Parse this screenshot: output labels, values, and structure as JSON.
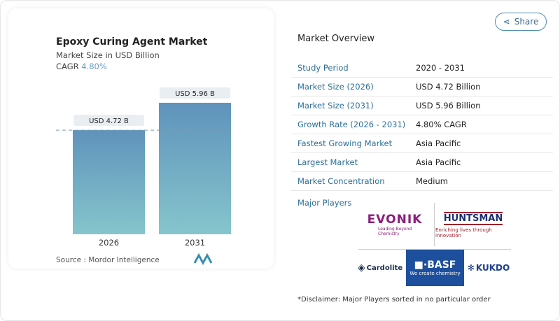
{
  "header": {
    "share_label": "Share",
    "share_icon": "share-icon"
  },
  "chart_data": {
    "type": "bar",
    "title": "Epoxy Curing Agent Market",
    "subtitle": "Market Size in USD Billion",
    "cagr_label": "CAGR",
    "cagr_value": "4.80%",
    "categories": [
      "2026",
      "2031"
    ],
    "values": [
      4.72,
      5.96
    ],
    "data_labels": [
      "USD 4.72 B",
      "USD 5.96 B"
    ],
    "reference_line": 4.72,
    "colors": {
      "top": "#5f93bb",
      "bottom": "#86c5cc"
    }
  },
  "source": "Source :  Mordor Intelligence",
  "overview": {
    "title": "Market Overview",
    "rows": [
      {
        "k": "Study Period",
        "v": "2020 - 2031"
      },
      {
        "k": "Market Size (2026)",
        "v": "USD 4.72 Billion"
      },
      {
        "k": "Market Size (2031)",
        "v": "USD 5.96 Billion"
      },
      {
        "k": "Growth Rate (2026 - 2031)",
        "v": "4.80% CAGR"
      },
      {
        "k": "Fastest Growing Market",
        "v": "Asia Pacific"
      },
      {
        "k": "Largest Market",
        "v": "Asia Pacific"
      },
      {
        "k": "Market Concentration",
        "v": "Medium"
      }
    ],
    "major_players_label": "Major Players",
    "players": [
      "EVONIK",
      "HUNTSMAN",
      "Cardolite",
      "BASF",
      "KUKDO"
    ],
    "player_taglines": {
      "evonik": "Leading Beyond Chemistry",
      "huntsman": "Enriching lives through innovation",
      "basf": "We create chemistry"
    },
    "disclaimer": "*Disclaimer: Major Players sorted in no particular order"
  }
}
